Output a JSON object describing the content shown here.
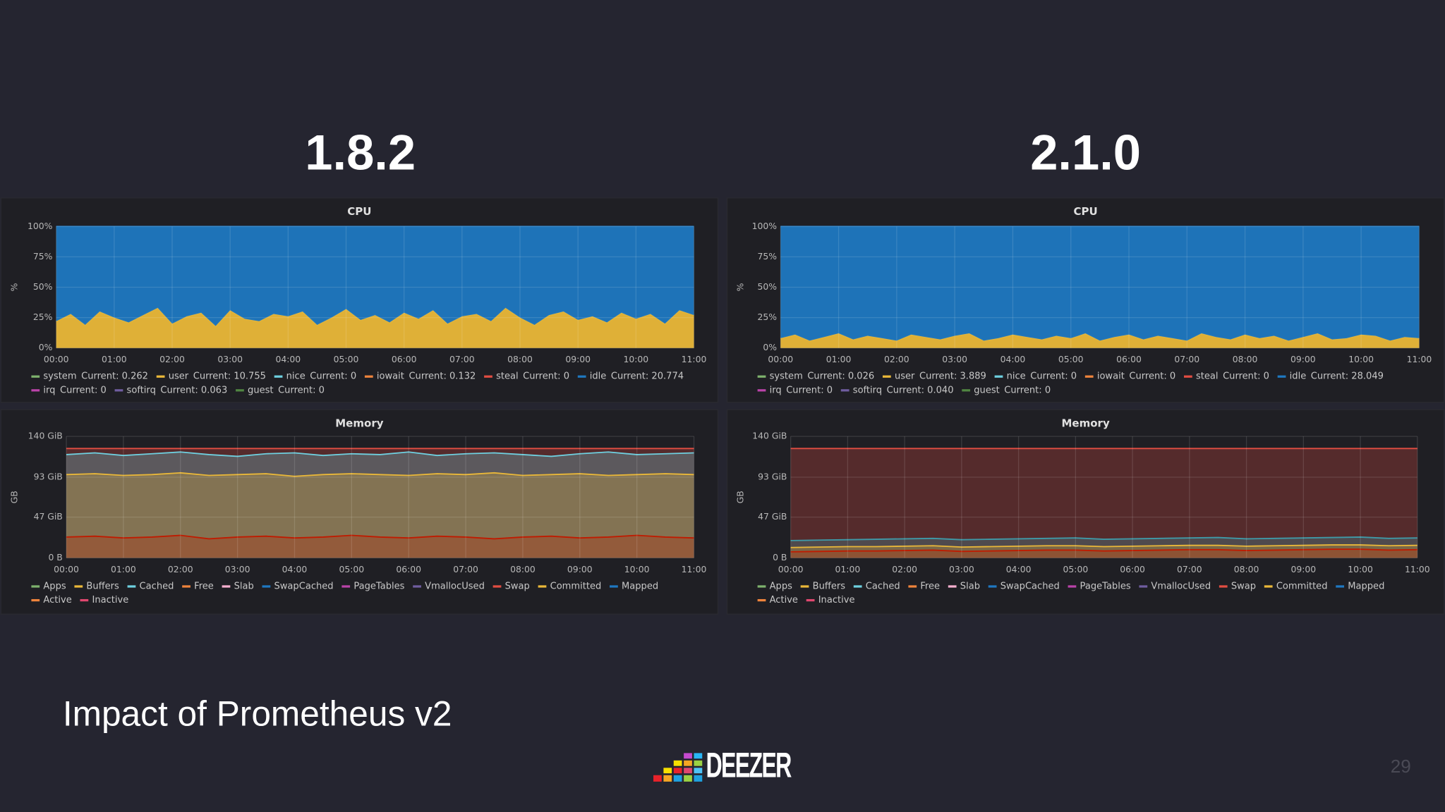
{
  "slide": {
    "title": "Impact of Prometheus v2",
    "page_number": "29",
    "logo": "DEEZER",
    "columns": [
      "1.8.2",
      "2.1.0"
    ]
  },
  "chart_data": [
    {
      "type": "area",
      "stacked": true,
      "title": "CPU",
      "ylabel": "%",
      "x": [
        0,
        0.25,
        0.5,
        0.75,
        1,
        1.25,
        1.5,
        1.75,
        2,
        2.25,
        2.5,
        2.75,
        3,
        3.25,
        3.5,
        3.75,
        4,
        4.25,
        4.5,
        4.75,
        5,
        5.25,
        5.5,
        5.75,
        6,
        6.25,
        6.5,
        6.75,
        7,
        7.25,
        7.5,
        7.75,
        8,
        8.25,
        8.5,
        8.75,
        9,
        9.25,
        9.5,
        9.75,
        10,
        10.25,
        10.5,
        10.75,
        11
      ],
      "series": [
        {
          "name": "user",
          "color": "#eab839",
          "values": [
            22,
            28,
            19,
            30,
            25,
            21,
            27,
            33,
            20,
            26,
            29,
            18,
            31,
            24,
            22,
            28,
            26,
            30,
            19,
            25,
            32,
            23,
            27,
            21,
            29,
            24,
            31,
            20,
            26,
            28,
            22,
            33,
            25,
            19,
            27,
            30,
            23,
            26,
            21,
            29,
            24,
            28,
            20,
            31,
            27
          ]
        },
        {
          "name": "idle",
          "color": "#1f78c1",
          "values": [
            78,
            72,
            81,
            70,
            75,
            79,
            73,
            67,
            80,
            74,
            71,
            82,
            69,
            76,
            78,
            72,
            74,
            70,
            81,
            75,
            68,
            77,
            73,
            79,
            71,
            76,
            69,
            80,
            74,
            72,
            78,
            67,
            75,
            81,
            73,
            70,
            77,
            74,
            79,
            71,
            76,
            72,
            80,
            69,
            73
          ]
        }
      ],
      "legend": [
        {
          "name": "system",
          "color": "#7eb26d",
          "current": "Current: 0.262"
        },
        {
          "name": "user",
          "color": "#eab839",
          "current": "Current: 10.755"
        },
        {
          "name": "nice",
          "color": "#6ed0e0",
          "current": "Current: 0"
        },
        {
          "name": "iowait",
          "color": "#ef843c",
          "current": "Current: 0.132"
        },
        {
          "name": "steal",
          "color": "#e24d42",
          "current": "Current: 0"
        },
        {
          "name": "idle",
          "color": "#1f78c1",
          "current": "Current: 20.774"
        },
        {
          "name": "irq",
          "color": "#ba43a9",
          "current": "Current: 0"
        },
        {
          "name": "softirq",
          "color": "#705da0",
          "current": "Current: 0.063"
        },
        {
          "name": "guest",
          "color": "#508642",
          "current": "Current: 0"
        }
      ],
      "xlim": [
        0,
        11
      ],
      "xticks": [
        {
          "value": 0,
          "label": "00:00"
        },
        {
          "value": 1,
          "label": "01:00"
        },
        {
          "value": 2,
          "label": "02:00"
        },
        {
          "value": 3,
          "label": "03:00"
        },
        {
          "value": 4,
          "label": "04:00"
        },
        {
          "value": 5,
          "label": "05:00"
        },
        {
          "value": 6,
          "label": "06:00"
        },
        {
          "value": 7,
          "label": "07:00"
        },
        {
          "value": 8,
          "label": "08:00"
        },
        {
          "value": 9,
          "label": "09:00"
        },
        {
          "value": 10,
          "label": "10:00"
        },
        {
          "value": 11,
          "label": "11:00"
        }
      ],
      "ylim": [
        0,
        100
      ],
      "yticks": [
        {
          "value": 0,
          "label": "0%"
        },
        {
          "value": 25,
          "label": "25%"
        },
        {
          "value": 50,
          "label": "50%"
        },
        {
          "value": 75,
          "label": "75%"
        },
        {
          "value": 100,
          "label": "100%"
        }
      ],
      "grid": true
    },
    {
      "type": "area",
      "stacked": false,
      "title": "Memory",
      "ylabel": "GB",
      "x": [
        0,
        0.5,
        1,
        1.5,
        2,
        2.5,
        3,
        3.5,
        4,
        4.5,
        5,
        5.5,
        6,
        6.5,
        7,
        7.5,
        8,
        8.5,
        9,
        9.5,
        10,
        10.5,
        11
      ],
      "series": [
        {
          "name": "Swap",
          "color": "#e24d42",
          "values": [
            126,
            126,
            126,
            126,
            126,
            126,
            126,
            126,
            126,
            126,
            126,
            126,
            126,
            126,
            126,
            126,
            126,
            126,
            126,
            126,
            126,
            126,
            126
          ]
        },
        {
          "name": "Cached",
          "color": "#6ed0e0",
          "values": [
            119,
            121,
            118,
            120,
            122,
            119,
            117,
            120,
            121,
            118,
            120,
            119,
            122,
            118,
            120,
            121,
            119,
            117,
            120,
            122,
            119,
            120,
            121
          ]
        },
        {
          "name": "Committed",
          "color": "#eab839",
          "values": [
            96,
            97,
            95,
            96,
            98,
            95,
            96,
            97,
            94,
            96,
            97,
            96,
            95,
            97,
            96,
            98,
            95,
            96,
            97,
            95,
            96,
            97,
            96
          ]
        },
        {
          "name": "Inactive",
          "color": "#bf1b00",
          "values": [
            24,
            25,
            23,
            24,
            26,
            22,
            24,
            25,
            23,
            24,
            26,
            24,
            23,
            25,
            24,
            22,
            24,
            25,
            23,
            24,
            26,
            24,
            23
          ]
        }
      ],
      "legend": [
        {
          "name": "Apps",
          "color": "#7eb26d"
        },
        {
          "name": "Buffers",
          "color": "#eab839"
        },
        {
          "name": "Cached",
          "color": "#6ed0e0"
        },
        {
          "name": "Free",
          "color": "#ef843c"
        },
        {
          "name": "Slab",
          "color": "#f9b0d0"
        },
        {
          "name": "SwapCached",
          "color": "#1f78c1"
        },
        {
          "name": "PageTables",
          "color": "#ba43a9"
        },
        {
          "name": "VmallocUsed",
          "color": "#705da0"
        },
        {
          "name": "Swap",
          "color": "#e24d42"
        },
        {
          "name": "Committed",
          "color": "#eab839"
        },
        {
          "name": "Mapped",
          "color": "#1f78c1"
        },
        {
          "name": "Active",
          "color": "#ef843c"
        },
        {
          "name": "Inactive",
          "color": "#e0476f"
        }
      ],
      "xlim": [
        0,
        11
      ],
      "xticks": [
        {
          "value": 0,
          "label": "00:00"
        },
        {
          "value": 1,
          "label": "01:00"
        },
        {
          "value": 2,
          "label": "02:00"
        },
        {
          "value": 3,
          "label": "03:00"
        },
        {
          "value": 4,
          "label": "04:00"
        },
        {
          "value": 5,
          "label": "05:00"
        },
        {
          "value": 6,
          "label": "06:00"
        },
        {
          "value": 7,
          "label": "07:00"
        },
        {
          "value": 8,
          "label": "08:00"
        },
        {
          "value": 9,
          "label": "09:00"
        },
        {
          "value": 10,
          "label": "10:00"
        },
        {
          "value": 11,
          "label": "11:00"
        }
      ],
      "ylim": [
        0,
        140
      ],
      "yticks": [
        {
          "value": 0,
          "label": "0 B"
        },
        {
          "value": 47,
          "label": "47 GiB"
        },
        {
          "value": 93,
          "label": "93 GiB"
        },
        {
          "value": 140,
          "label": "140 GiB"
        }
      ],
      "grid": true
    },
    {
      "type": "area",
      "stacked": true,
      "title": "CPU",
      "ylabel": "%",
      "x": [
        0,
        0.25,
        0.5,
        0.75,
        1,
        1.25,
        1.5,
        1.75,
        2,
        2.25,
        2.5,
        2.75,
        3,
        3.25,
        3.5,
        3.75,
        4,
        4.25,
        4.5,
        4.75,
        5,
        5.25,
        5.5,
        5.75,
        6,
        6.25,
        6.5,
        6.75,
        7,
        7.25,
        7.5,
        7.75,
        8,
        8.25,
        8.5,
        8.75,
        9,
        9.25,
        9.5,
        9.75,
        10,
        10.25,
        10.5,
        10.75,
        11
      ],
      "series": [
        {
          "name": "user",
          "color": "#eab839",
          "values": [
            8,
            11,
            6,
            9,
            12,
            7,
            10,
            8,
            6,
            11,
            9,
            7,
            10,
            12,
            6,
            8,
            11,
            9,
            7,
            10,
            8,
            12,
            6,
            9,
            11,
            7,
            10,
            8,
            6,
            12,
            9,
            7,
            11,
            8,
            10,
            6,
            9,
            12,
            7,
            8,
            11,
            10,
            6,
            9,
            8
          ]
        },
        {
          "name": "idle",
          "color": "#1f78c1",
          "values": [
            92,
            89,
            94,
            91,
            88,
            93,
            90,
            92,
            94,
            89,
            91,
            93,
            90,
            88,
            94,
            92,
            89,
            91,
            93,
            90,
            92,
            88,
            94,
            91,
            89,
            93,
            90,
            92,
            94,
            88,
            91,
            93,
            89,
            92,
            90,
            94,
            91,
            88,
            93,
            92,
            89,
            90,
            94,
            91,
            92
          ]
        }
      ],
      "legend": [
        {
          "name": "system",
          "color": "#7eb26d",
          "current": "Current: 0.026"
        },
        {
          "name": "user",
          "color": "#eab839",
          "current": "Current: 3.889"
        },
        {
          "name": "nice",
          "color": "#6ed0e0",
          "current": "Current: 0"
        },
        {
          "name": "iowait",
          "color": "#ef843c",
          "current": "Current: 0"
        },
        {
          "name": "steal",
          "color": "#e24d42",
          "current": "Current: 0"
        },
        {
          "name": "idle",
          "color": "#1f78c1",
          "current": "Current: 28.049"
        },
        {
          "name": "irq",
          "color": "#ba43a9",
          "current": "Current: 0"
        },
        {
          "name": "softirq",
          "color": "#705da0",
          "current": "Current: 0.040"
        },
        {
          "name": "guest",
          "color": "#508642",
          "current": "Current: 0"
        }
      ],
      "xlim": [
        0,
        11
      ],
      "xticks": [
        {
          "value": 0,
          "label": "00:00"
        },
        {
          "value": 1,
          "label": "01:00"
        },
        {
          "value": 2,
          "label": "02:00"
        },
        {
          "value": 3,
          "label": "03:00"
        },
        {
          "value": 4,
          "label": "04:00"
        },
        {
          "value": 5,
          "label": "05:00"
        },
        {
          "value": 6,
          "label": "06:00"
        },
        {
          "value": 7,
          "label": "07:00"
        },
        {
          "value": 8,
          "label": "08:00"
        },
        {
          "value": 9,
          "label": "09:00"
        },
        {
          "value": 10,
          "label": "10:00"
        },
        {
          "value": 11,
          "label": "11:00"
        }
      ],
      "ylim": [
        0,
        100
      ],
      "yticks": [
        {
          "value": 0,
          "label": "0%"
        },
        {
          "value": 25,
          "label": "25%"
        },
        {
          "value": 50,
          "label": "50%"
        },
        {
          "value": 75,
          "label": "75%"
        },
        {
          "value": 100,
          "label": "100%"
        }
      ],
      "grid": true
    },
    {
      "type": "area",
      "stacked": false,
      "title": "Memory",
      "ylabel": "GB",
      "x": [
        0,
        0.5,
        1,
        1.5,
        2,
        2.5,
        3,
        3.5,
        4,
        4.5,
        5,
        5.5,
        6,
        6.5,
        7,
        7.5,
        8,
        8.5,
        9,
        9.5,
        10,
        10.5,
        11
      ],
      "series": [
        {
          "name": "Swap",
          "color": "#e24d42",
          "values": [
            126,
            126,
            126,
            126,
            126,
            126,
            126,
            126,
            126,
            126,
            126,
            126,
            126,
            126,
            126,
            126,
            126,
            126,
            126,
            126,
            126,
            126,
            126
          ]
        },
        {
          "name": "Cached",
          "color": "#3f9aa8",
          "values": [
            20,
            20.5,
            21,
            21.5,
            22,
            22.5,
            21,
            21.5,
            22,
            22.5,
            23,
            21.5,
            22,
            22.5,
            23,
            23.5,
            22,
            22.5,
            23,
            23.5,
            24,
            22.5,
            23
          ]
        },
        {
          "name": "Committed",
          "color": "#eab839",
          "values": [
            12,
            12.5,
            13,
            13,
            13.5,
            14,
            12.5,
            13,
            13.5,
            14,
            14,
            13,
            13.5,
            14,
            14.5,
            14.5,
            13.5,
            14,
            14.5,
            15,
            15,
            14,
            14.5
          ]
        },
        {
          "name": "Inactive",
          "color": "#bf1b00",
          "values": [
            7,
            7.5,
            8,
            8,
            8.5,
            9,
            7.5,
            8,
            8.5,
            9,
            9,
            8,
            8.5,
            9,
            9.5,
            9.5,
            8.5,
            9,
            9.5,
            10,
            10,
            9,
            9.5
          ]
        }
      ],
      "legend": [
        {
          "name": "Apps",
          "color": "#7eb26d"
        },
        {
          "name": "Buffers",
          "color": "#eab839"
        },
        {
          "name": "Cached",
          "color": "#6ed0e0"
        },
        {
          "name": "Free",
          "color": "#ef843c"
        },
        {
          "name": "Slab",
          "color": "#f9b0d0"
        },
        {
          "name": "SwapCached",
          "color": "#1f78c1"
        },
        {
          "name": "PageTables",
          "color": "#ba43a9"
        },
        {
          "name": "VmallocUsed",
          "color": "#705da0"
        },
        {
          "name": "Swap",
          "color": "#e24d42"
        },
        {
          "name": "Committed",
          "color": "#eab839"
        },
        {
          "name": "Mapped",
          "color": "#1f78c1"
        },
        {
          "name": "Active",
          "color": "#ef843c"
        },
        {
          "name": "Inactive",
          "color": "#e0476f"
        }
      ],
      "xlim": [
        0,
        11
      ],
      "xticks": [
        {
          "value": 0,
          "label": "00:00"
        },
        {
          "value": 1,
          "label": "01:00"
        },
        {
          "value": 2,
          "label": "02:00"
        },
        {
          "value": 3,
          "label": "03:00"
        },
        {
          "value": 4,
          "label": "04:00"
        },
        {
          "value": 5,
          "label": "05:00"
        },
        {
          "value": 6,
          "label": "06:00"
        },
        {
          "value": 7,
          "label": "07:00"
        },
        {
          "value": 8,
          "label": "08:00"
        },
        {
          "value": 9,
          "label": "09:00"
        },
        {
          "value": 10,
          "label": "10:00"
        },
        {
          "value": 11,
          "label": "11:00"
        }
      ],
      "ylim": [
        0,
        140
      ],
      "yticks": [
        {
          "value": 0,
          "label": "0 B"
        },
        {
          "value": 47,
          "label": "47 GiB"
        },
        {
          "value": 93,
          "label": "93 GiB"
        },
        {
          "value": 140,
          "label": "140 GiB"
        }
      ],
      "grid": true
    }
  ]
}
